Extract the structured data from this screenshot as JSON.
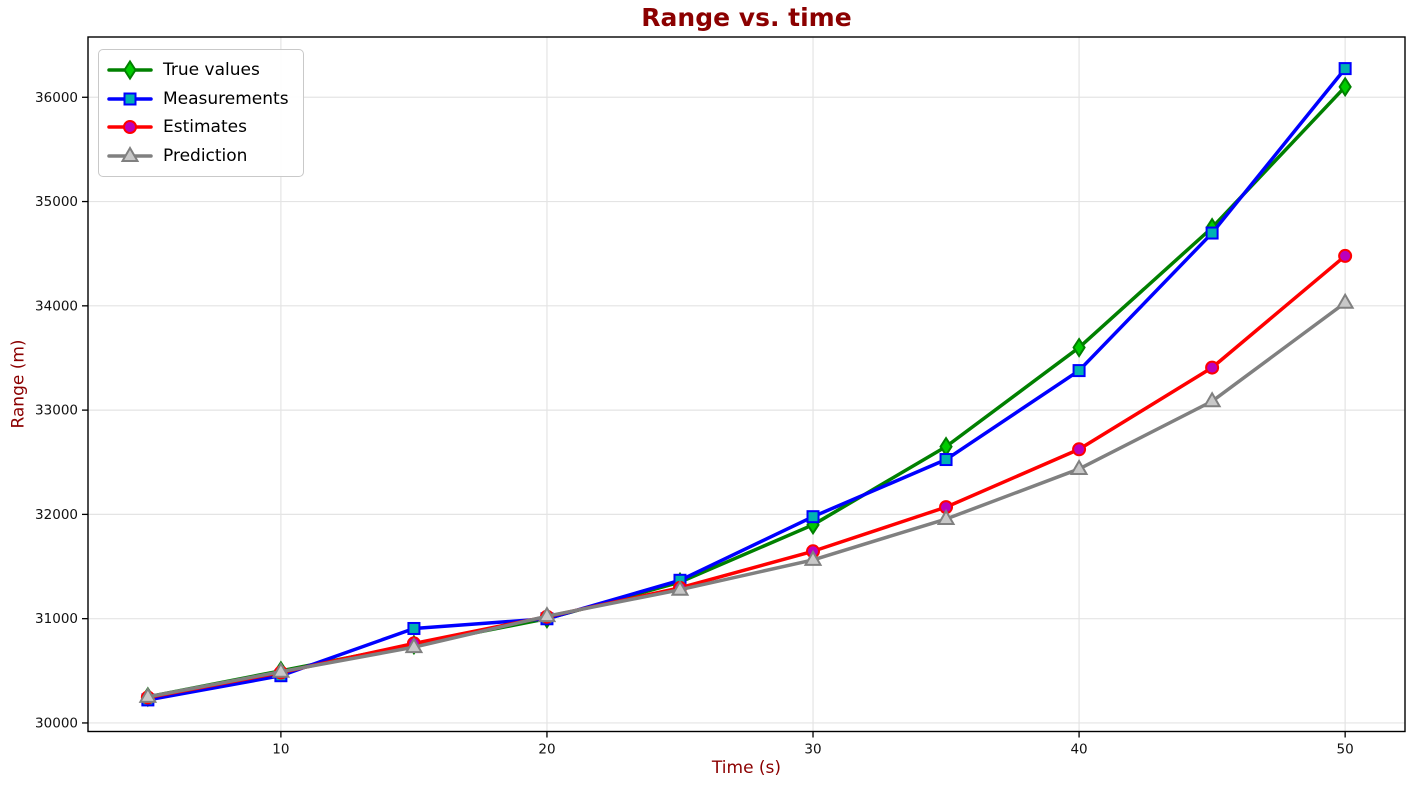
{
  "chart_data": {
    "type": "line",
    "title": "Range vs. time",
    "xlabel": "Time (s)",
    "ylabel": "Range (m)",
    "title_color": "#8B0000",
    "axis_label_color": "#8B0000",
    "tick_label_color": "#111111",
    "grid": true,
    "grid_color": "#e4e4e4",
    "background_color": "#ffffff",
    "x": [
      5,
      10,
      15,
      20,
      25,
      30,
      35,
      40,
      45,
      50
    ],
    "series": [
      {
        "name": "True values",
        "color": "#008000",
        "marker": "diamond",
        "marker_face": "#00cc00",
        "values": [
          30250,
          30500,
          30750,
          31000,
          31350,
          31900,
          32650,
          33600,
          34750,
          36100
        ]
      },
      {
        "name": "Measurements",
        "color": "#0000ff",
        "marker": "square",
        "marker_face": "#00b2b2",
        "values": [
          30221,
          30453,
          30906,
          30999,
          31368,
          31978,
          32526,
          33379,
          34698,
          36275
        ]
      },
      {
        "name": "Estimates",
        "color": "#ff0000",
        "marker": "circle",
        "marker_face": "#bb00bb",
        "values": [
          30244.2,
          30483.6,
          30762.7,
          31018.9,
          31295.7,
          31646.3,
          32069.6,
          32624.4,
          33407.6,
          34478.6
        ]
      },
      {
        "name": "Prediction",
        "color": "#808080",
        "marker": "triangle-up",
        "marker_face": "#c8c8c8",
        "values": [
          30250,
          30491.3,
          30726.9,
          31023.9,
          31277.6,
          31563.4,
          31955.5,
          32435.8,
          33085,
          34029.5
        ]
      }
    ],
    "xticks": [
      10,
      20,
      30,
      40,
      50
    ],
    "yticks": [
      30000,
      31000,
      32000,
      33000,
      34000,
      35000,
      36000
    ],
    "xlim": [
      2.75,
      52.25
    ],
    "ylim": [
      29918,
      36578
    ],
    "legend": {
      "position": "upper left",
      "labels": [
        "True values",
        "Measurements",
        "Estimates",
        "Prediction"
      ]
    }
  }
}
